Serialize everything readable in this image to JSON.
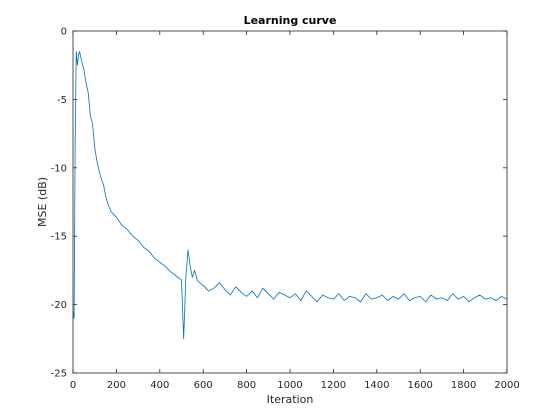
{
  "chart_data": {
    "type": "line",
    "title": "Learning curve",
    "xlabel": "Iteration",
    "ylabel": "MSE (dB)",
    "xlim": [
      0,
      2000
    ],
    "ylim": [
      -25,
      0
    ],
    "x_ticks": [
      0,
      200,
      400,
      600,
      800,
      1000,
      1200,
      1400,
      1600,
      1800,
      2000
    ],
    "y_ticks": [
      0,
      -5,
      -10,
      -15,
      -20,
      -25
    ],
    "x_tick_labels": [
      "0",
      "200",
      "400",
      "600",
      "800",
      "1000",
      "1200",
      "1400",
      "1600",
      "1800",
      "2000"
    ],
    "y_tick_labels": [
      "0",
      "-5",
      "-10",
      "-15",
      "-20",
      "-25"
    ],
    "grid": false,
    "box": true,
    "line_color": "#0072BD",
    "axis_color": "#262626",
    "series": [
      {
        "x": [
          0,
          5,
          10,
          15,
          20,
          25,
          30,
          40,
          50,
          60,
          70,
          80,
          90,
          100,
          110,
          120,
          130,
          140,
          150,
          160,
          175,
          200,
          225,
          250,
          275,
          300,
          325,
          350,
          375,
          400,
          425,
          450,
          475,
          500,
          510,
          520,
          530,
          540,
          550,
          560,
          575,
          600,
          625,
          650,
          675,
          700,
          725,
          750,
          775,
          800,
          825,
          850,
          875,
          900,
          925,
          950,
          975,
          1000,
          1025,
          1050,
          1075,
          1100,
          1125,
          1150,
          1175,
          1200,
          1225,
          1250,
          1275,
          1300,
          1325,
          1350,
          1375,
          1400,
          1425,
          1450,
          1475,
          1500,
          1525,
          1550,
          1575,
          1600,
          1625,
          1650,
          1675,
          1700,
          1725,
          1750,
          1775,
          1800,
          1825,
          1850,
          1875,
          1900,
          1925,
          1950,
          1975,
          2000
        ],
        "values": [
          -20.5,
          -21,
          -8,
          -1.5,
          -2.5,
          -1.8,
          -1.5,
          -2.2,
          -2.8,
          -3.8,
          -4.5,
          -6.2,
          -6.8,
          -8.5,
          -9.5,
          -10.2,
          -10.8,
          -11.2,
          -12.0,
          -12.6,
          -13.2,
          -13.6,
          -14.2,
          -14.5,
          -15.0,
          -15.3,
          -15.8,
          -16.1,
          -16.6,
          -16.9,
          -17.2,
          -17.6,
          -17.9,
          -18.2,
          -22.5,
          -18.0,
          -16.0,
          -17.2,
          -18.0,
          -17.5,
          -18.3,
          -18.6,
          -19.0,
          -18.8,
          -18.4,
          -18.9,
          -19.3,
          -18.7,
          -19.1,
          -19.4,
          -19.0,
          -19.5,
          -18.8,
          -19.2,
          -19.6,
          -19.1,
          -19.3,
          -19.5,
          -19.2,
          -19.7,
          -19.0,
          -19.4,
          -19.8,
          -19.3,
          -19.5,
          -19.6,
          -19.2,
          -19.7,
          -19.4,
          -19.5,
          -19.8,
          -19.2,
          -19.6,
          -19.5,
          -19.3,
          -19.7,
          -19.4,
          -19.6,
          -19.2,
          -19.7,
          -19.5,
          -19.4,
          -19.8,
          -19.3,
          -19.6,
          -19.5,
          -19.7,
          -19.2,
          -19.6,
          -19.4,
          -19.8,
          -19.5,
          -19.3,
          -19.6,
          -19.5,
          -19.7,
          -19.4,
          -19.6
        ]
      }
    ]
  }
}
